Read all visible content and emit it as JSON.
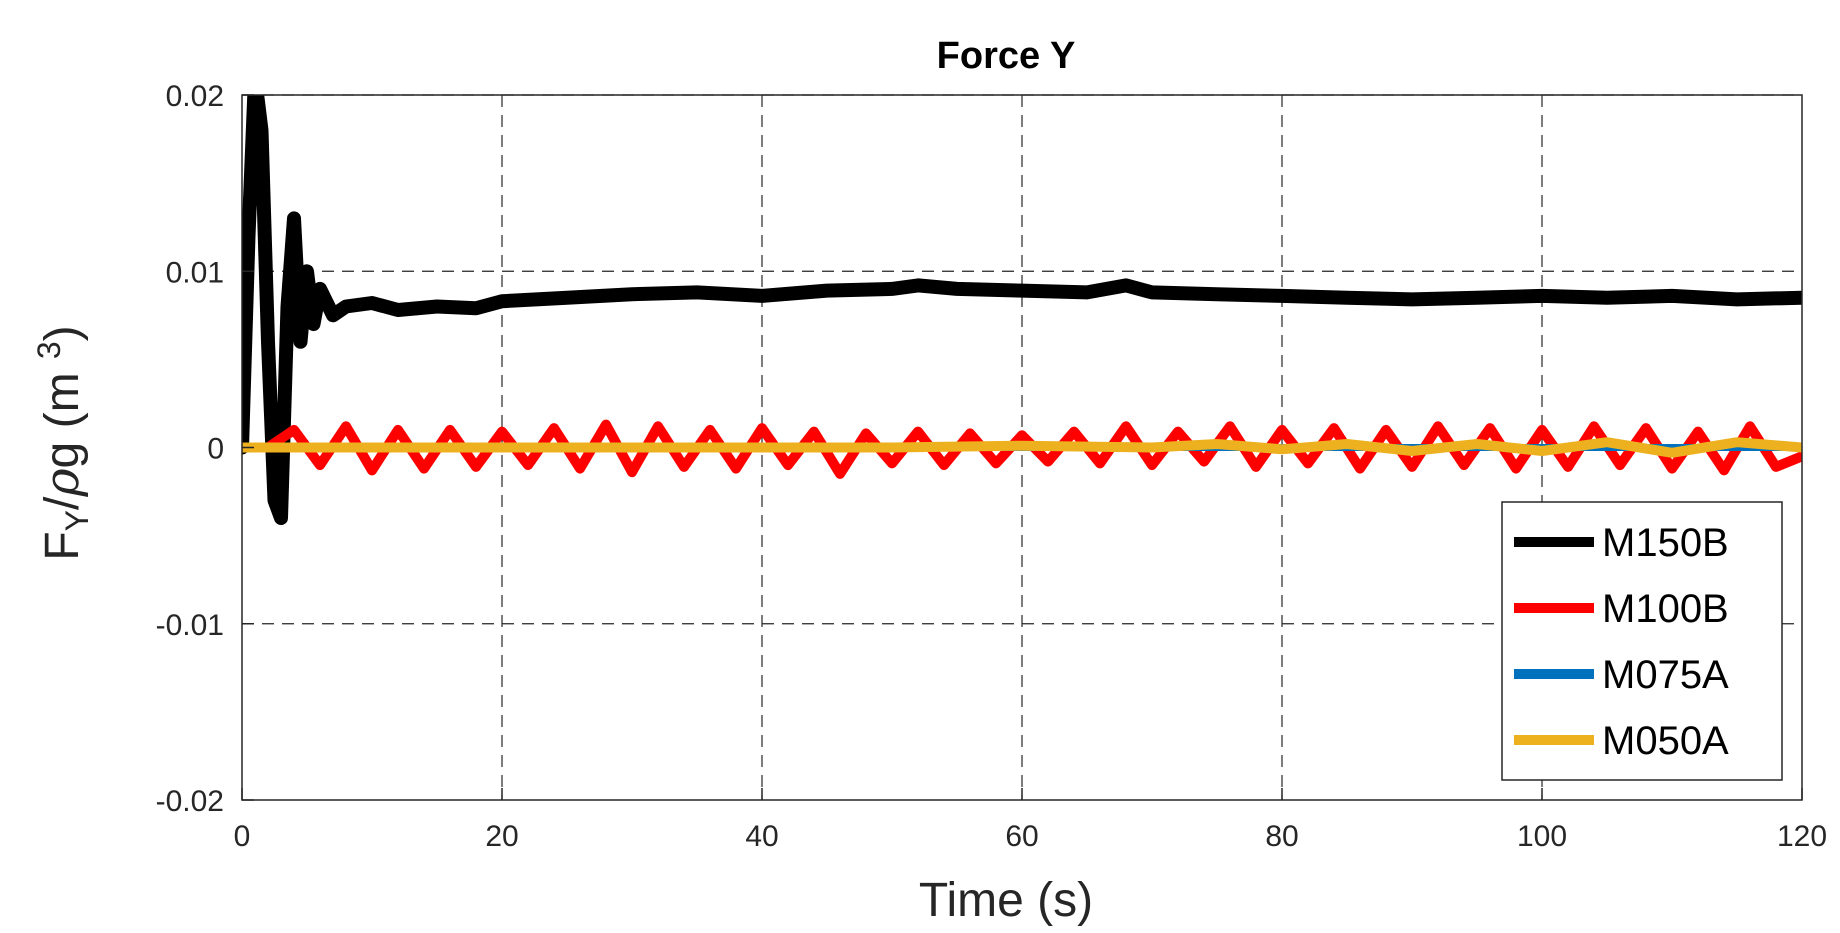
{
  "chart_data": {
    "type": "line",
    "title": "Force Y",
    "xlabel": "Time (s)",
    "ylabel": {
      "main": "F",
      "sub": "Y",
      "mid": "/",
      "rho": "ρ",
      "rest": "g (m ",
      "sup": "3",
      "close": ")"
    },
    "xlim": [
      0,
      120
    ],
    "ylim": [
      -0.02,
      0.02
    ],
    "xticks": [
      0,
      20,
      40,
      60,
      80,
      100,
      120
    ],
    "xtick_labels": [
      "0",
      "20",
      "40",
      "60",
      "80",
      "100",
      "120"
    ],
    "yticks": [
      -0.02,
      -0.01,
      0,
      0.01,
      0.02
    ],
    "ytick_labels": [
      "-0.02",
      "-0.01",
      "0",
      "0.01",
      "0.02"
    ],
    "grid": true,
    "legend_position": "bottom-right",
    "series": [
      {
        "name": "M150B",
        "color": "#000000",
        "x": [
          0,
          0.5,
          1,
          1.5,
          2,
          2.5,
          3,
          3.5,
          4,
          4.5,
          5,
          5.5,
          6,
          7,
          8,
          10,
          12,
          15,
          18,
          20,
          25,
          30,
          35,
          40,
          45,
          50,
          52,
          55,
          60,
          65,
          68,
          70,
          75,
          80,
          85,
          90,
          95,
          100,
          105,
          110,
          115,
          120
        ],
        "y": [
          0,
          0.012,
          0.021,
          0.018,
          0.006,
          -0.003,
          -0.004,
          0.008,
          0.013,
          0.006,
          0.01,
          0.007,
          0.009,
          0.0075,
          0.008,
          0.0082,
          0.0078,
          0.008,
          0.0079,
          0.0083,
          0.0085,
          0.0087,
          0.0088,
          0.0086,
          0.0089,
          0.009,
          0.0092,
          0.009,
          0.0089,
          0.0088,
          0.0092,
          0.0088,
          0.0087,
          0.0086,
          0.0085,
          0.0084,
          0.0085,
          0.0086,
          0.0085,
          0.0086,
          0.0084,
          0.0085
        ]
      },
      {
        "name": "M100B",
        "color": "#ff0000",
        "x": [
          0,
          2,
          4,
          6,
          8,
          10,
          12,
          14,
          16,
          18,
          20,
          22,
          24,
          26,
          28,
          30,
          32,
          34,
          36,
          38,
          40,
          42,
          44,
          46,
          48,
          50,
          52,
          54,
          56,
          58,
          60,
          62,
          64,
          66,
          68,
          70,
          72,
          74,
          76,
          78,
          80,
          82,
          84,
          86,
          88,
          90,
          92,
          94,
          96,
          98,
          100,
          102,
          104,
          106,
          108,
          110,
          112,
          114,
          116,
          118,
          120
        ],
        "y": [
          0,
          0,
          0.001,
          -0.001,
          0.0012,
          -0.0013,
          0.001,
          -0.0012,
          0.001,
          -0.0011,
          0.0009,
          -0.001,
          0.0011,
          -0.0012,
          0.0013,
          -0.0014,
          0.0012,
          -0.0011,
          0.001,
          -0.0012,
          0.0011,
          -0.001,
          0.0009,
          -0.0015,
          0.0008,
          -0.0009,
          0.0009,
          -0.001,
          0.0008,
          -0.0009,
          0.0007,
          -0.0008,
          0.0009,
          -0.0009,
          0.0012,
          -0.001,
          0.0009,
          -0.0008,
          0.0012,
          -0.0011,
          0.001,
          -0.0009,
          0.0011,
          -0.0012,
          0.001,
          -0.0011,
          0.0012,
          -0.001,
          0.0011,
          -0.0012,
          0.001,
          -0.0011,
          0.0012,
          -0.001,
          0.0011,
          -0.0012,
          0.0009,
          -0.0013,
          0.0012,
          -0.0011,
          -0.0005
        ]
      },
      {
        "name": "M075A",
        "color": "#0072bd",
        "x": [
          0,
          20,
          40,
          60,
          80,
          100,
          120
        ],
        "y": [
          0,
          0,
          0,
          0,
          0,
          0,
          0
        ]
      },
      {
        "name": "M050A",
        "color": "#edb120",
        "x": [
          0,
          10,
          20,
          30,
          40,
          50,
          60,
          70,
          75,
          80,
          85,
          90,
          95,
          100,
          105,
          110,
          115,
          120
        ],
        "y": [
          0,
          0,
          0,
          0,
          0,
          0,
          0.0001,
          0,
          0.0002,
          -0.0001,
          0.0002,
          -0.0002,
          0.0002,
          -0.0002,
          0.0003,
          -0.0003,
          0.0003,
          0
        ]
      }
    ]
  }
}
